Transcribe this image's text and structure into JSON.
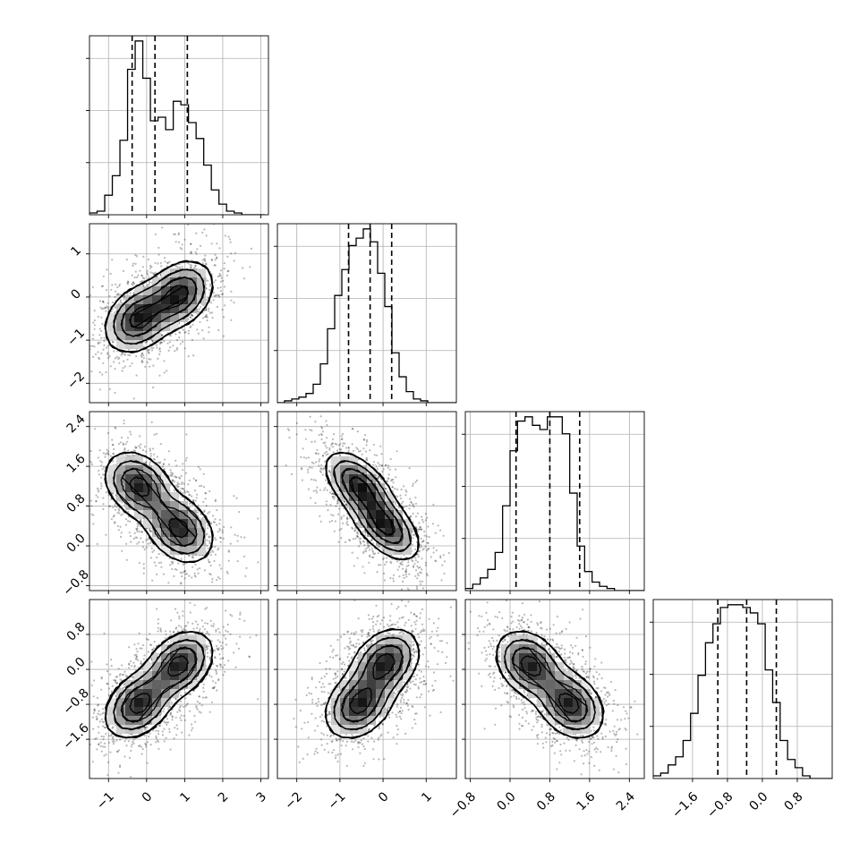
{
  "chart_data": {
    "type": "corner",
    "colors": {
      "ink": "#000000",
      "grid": "#b0b0b0",
      "scatter": "#000000",
      "background": "#ffffff"
    },
    "grid": true,
    "params": [
      {
        "range": [
          -1.5,
          3.2
        ],
        "ticks": [
          -1,
          0,
          1,
          2,
          3
        ],
        "tick_labels": [
          "−1",
          "0",
          "1",
          "2",
          "3"
        ],
        "quantiles": [
          -0.38,
          0.22,
          1.07
        ],
        "hist": {
          "edges_start": -1.5,
          "bin_width": 0.2,
          "counts": [
            1,
            2,
            11,
            22,
            42,
            82,
            98,
            77,
            53,
            55,
            48,
            64,
            62,
            52,
            43,
            28,
            14,
            6,
            2,
            1,
            0,
            0,
            0
          ]
        },
        "modes": [
          -0.2,
          0.85
        ]
      },
      {
        "range": [
          -2.45,
          1.7
        ],
        "ticks": [
          -2,
          -1,
          0,
          1
        ],
        "tick_labels": [
          "−2",
          "−1",
          "0",
          "1"
        ],
        "quantiles": [
          -0.8,
          -0.3,
          0.2
        ],
        "hist": {
          "edges_start": -2.45,
          "bin_width": 0.166,
          "counts": [
            0,
            1,
            2,
            3,
            5,
            10,
            21,
            40,
            58,
            72,
            85,
            89,
            94,
            87,
            70,
            52,
            27,
            14,
            6,
            2,
            1,
            0,
            0,
            0,
            0
          ]
        },
        "modes": [
          -0.55,
          0.05
        ]
      },
      {
        "range": [
          -0.9,
          2.7
        ],
        "ticks": [
          -0.8,
          0.0,
          0.8,
          1.6,
          2.4
        ],
        "tick_labels": [
          "−0.8",
          "0.0",
          "0.8",
          "1.6",
          "2.4"
        ],
        "quantiles": [
          0.12,
          0.8,
          1.4
        ],
        "hist": {
          "edges_start": -0.9,
          "bin_width": 0.15,
          "counts": [
            1,
            3,
            6,
            10,
            18,
            40,
            66,
            80,
            82,
            78,
            76,
            82,
            82,
            74,
            46,
            21,
            9,
            4,
            2,
            1,
            0,
            0,
            0,
            0
          ]
        },
        "modes": [
          1.2,
          0.35
        ]
      },
      {
        "range": [
          -2.5,
          1.6
        ],
        "ticks": [
          -1.6,
          -0.8,
          0.0,
          0.8
        ],
        "tick_labels": [
          "−1.6",
          "−0.8",
          "0.0",
          "0.8"
        ],
        "quantiles": [
          -1.02,
          -0.36,
          0.32
        ],
        "hist": {
          "edges_start": -2.5,
          "bin_width": 0.171,
          "counts": [
            1,
            2,
            5,
            8,
            14,
            24,
            38,
            50,
            57,
            63,
            64,
            64,
            63,
            61,
            57,
            40,
            28,
            14,
            7,
            4,
            1,
            0,
            0,
            0
          ]
        },
        "modes": [
          -0.8,
          0.1
        ]
      }
    ],
    "pairs": [
      {
        "x": 0,
        "y": 1,
        "modes": [
          [
            -0.2,
            -0.5
          ],
          [
            0.85,
            0.05
          ]
        ],
        "corr": 0.3
      },
      {
        "x": 0,
        "y": 2,
        "modes": [
          [
            -0.2,
            1.2
          ],
          [
            0.85,
            0.35
          ]
        ],
        "corr": -0.3
      },
      {
        "x": 1,
        "y": 2,
        "modes": [
          [
            -0.55,
            1.2
          ],
          [
            0.05,
            0.4
          ]
        ],
        "corr": -0.55
      },
      {
        "x": 0,
        "y": 3,
        "modes": [
          [
            -0.2,
            -0.8
          ],
          [
            0.85,
            0.1
          ]
        ],
        "corr": 0.35
      },
      {
        "x": 1,
        "y": 3,
        "modes": [
          [
            -0.55,
            -0.8
          ],
          [
            0.05,
            0.15
          ]
        ],
        "corr": 0.3
      },
      {
        "x": 2,
        "y": 3,
        "modes": [
          [
            0.4,
            0.1
          ],
          [
            1.2,
            -0.8
          ]
        ],
        "corr": -0.3
      }
    ]
  }
}
